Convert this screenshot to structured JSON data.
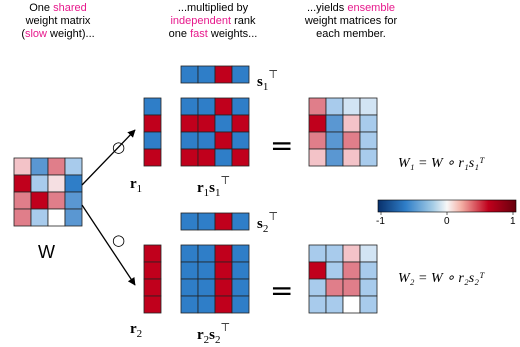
{
  "captions": {
    "left": {
      "line1": [
        "One ",
        "shared"
      ],
      "line2": "weight matrix",
      "line3": [
        "(",
        "slow",
        " weight)..."
      ]
    },
    "middle": {
      "line1": "...multiplied by",
      "line2": [
        "independent",
        " rank"
      ],
      "line3": [
        "one ",
        "fast",
        " weights..."
      ]
    },
    "right": {
      "line1": [
        "...yields ",
        "ensemble"
      ],
      "line2": "weight matrices for",
      "line3": "each member."
    }
  },
  "labels": {
    "W": "W",
    "circle_op": "○",
    "equals": "=",
    "r1": "r",
    "r1_sub": "1",
    "r2": "r",
    "r2_sub": "2",
    "s1": "s",
    "s1_sub": "1",
    "s2": "s",
    "s2_sub": "2",
    "transpose": "⊤",
    "r1s1_r": "r",
    "r1s1_r_sub": "1",
    "r1s1_s": "s",
    "r1s1_s_sub": "1",
    "r2s2_r": "r",
    "r2s2_r_sub": "2",
    "r2s2_s": "s",
    "r2s2_s_sub": "2",
    "eq1": "W₁ = W ∘ r₁s₁ᵀ",
    "eq2": "W₂ = W ∘ r₂s₂ᵀ"
  },
  "colorbar": {
    "ticks": [
      "-1",
      "0",
      "1"
    ],
    "colormap": "red-blue (RdBu)"
  },
  "colors": {
    "highlight": "#e7198c",
    "red": "#c0001c",
    "blue": "#2f7ec8"
  }
}
